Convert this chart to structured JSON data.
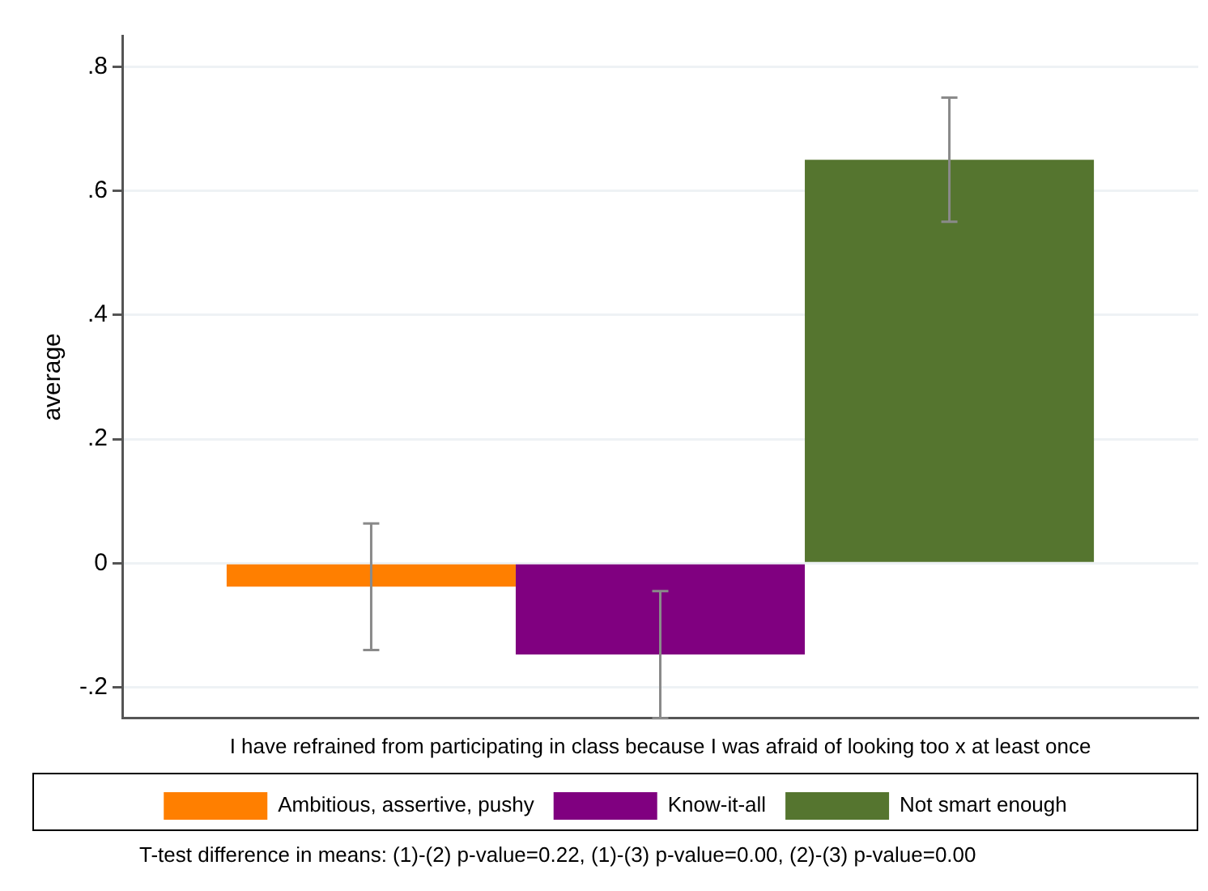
{
  "chart_data": {
    "type": "bar",
    "xlabel": "I have refrained from participating in class because I was afraid of looking too x at least once",
    "ylabel": "average",
    "categories": [
      null
    ],
    "series": [
      {
        "name": "Ambitious, assertive, pushy",
        "color": "#ff7f00",
        "values": [
          -0.038
        ],
        "errors": [
          [
            -0.14,
            0.064
          ]
        ]
      },
      {
        "name": "Know-it-all",
        "color": "#800080",
        "values": [
          -0.147
        ],
        "errors": [
          [
            -0.25,
            -0.045
          ]
        ]
      },
      {
        "name": "Not smart enough",
        "color": "#55752f",
        "values": [
          0.65
        ],
        "errors": [
          [
            0.55,
            0.75
          ]
        ]
      }
    ],
    "ylim": [
      -0.25,
      0.85
    ],
    "yticks": [
      {
        "value": -0.2,
        "label": "-.2"
      },
      0,
      {
        "value": 0.2,
        "label": ".2"
      },
      {
        "value": 0.4,
        "label": ".4"
      },
      {
        "value": 0.6,
        "label": ".6"
      },
      {
        "value": 0.8,
        "label": ".8"
      }
    ],
    "grid": "y",
    "legend": "bottom",
    "tick_labels": "y",
    "annotations": [
      "T-test difference in means: (1)-(2) p-value=0.22, (1)-(3) p-value=0.00, (2)-(3) p-value=0.00"
    ]
  }
}
